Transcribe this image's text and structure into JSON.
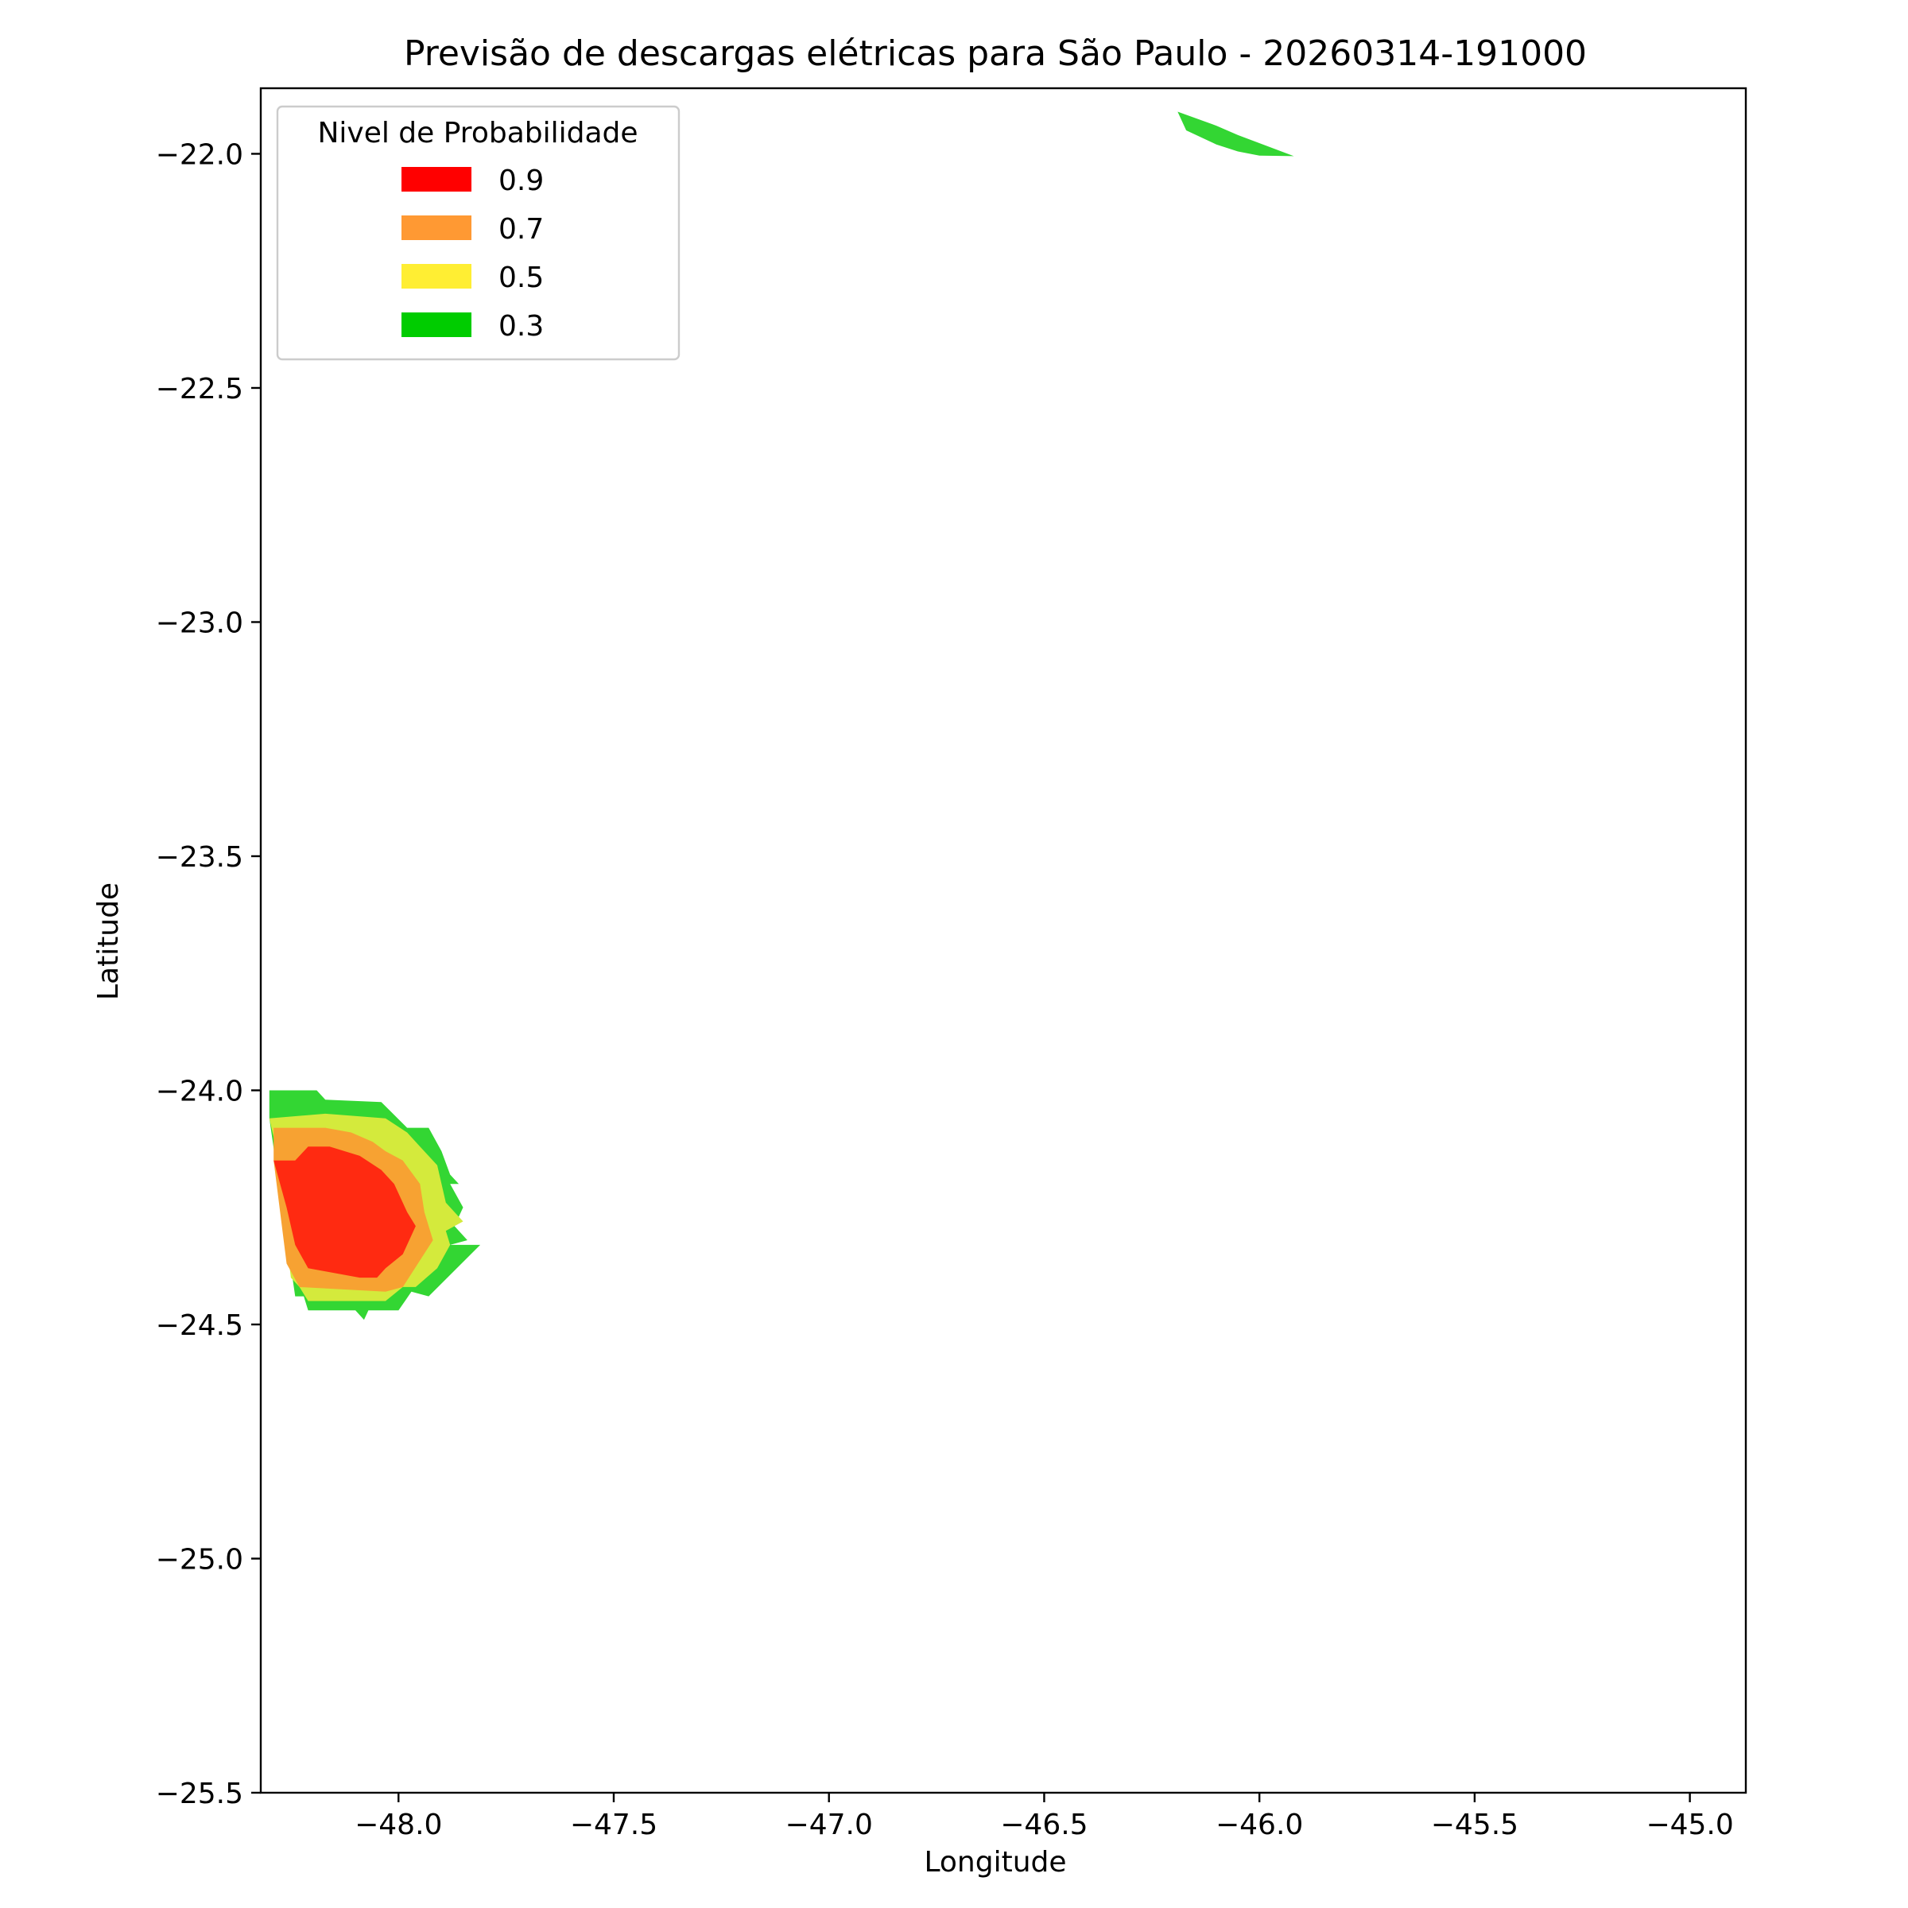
{
  "chart_data": {
    "type": "contour",
    "title": "Previsão de descargas elétricas para São Paulo - 20260314-191000",
    "xlabel": "Longitude",
    "ylabel": "Latitude",
    "xlim": [
      -48.32,
      -44.87
    ],
    "ylim": [
      -25.5,
      -21.86
    ],
    "xticks": [
      -48.0,
      -47.5,
      -47.0,
      -46.5,
      -46.0,
      -45.5,
      -45.0
    ],
    "xtick_labels": [
      "−48.0",
      "−47.5",
      "−47.0",
      "−46.5",
      "−46.0",
      "−45.5",
      "−45.0"
    ],
    "yticks": [
      -22.0,
      -22.5,
      -23.0,
      -23.5,
      -24.0,
      -24.5,
      -25.0,
      -25.5
    ],
    "ytick_labels": [
      "−22.0",
      "−22.5",
      "−23.0",
      "−23.5",
      "−24.0",
      "−24.5",
      "−25.0",
      "−25.5"
    ],
    "grid": false,
    "legend": {
      "title": "Nivel de Probabilidade",
      "placement": "top-left",
      "entries": [
        {
          "label": "0.9",
          "color": "#ff0000"
        },
        {
          "label": "0.7",
          "color": "#ff9933"
        },
        {
          "label": "0.5",
          "color": "#ffee33"
        },
        {
          "label": "0.3",
          "color": "#00cc00"
        }
      ]
    },
    "regions": [
      {
        "level": "0.3",
        "color": "#33d633",
        "polygon": [
          [
            -48.3,
            -24.0
          ],
          [
            -48.19,
            -24.0
          ],
          [
            -48.17,
            -24.02
          ],
          [
            -48.04,
            -24.025
          ],
          [
            -47.98,
            -24.08
          ],
          [
            -47.93,
            -24.08
          ],
          [
            -47.9,
            -24.13
          ],
          [
            -47.88,
            -24.18
          ],
          [
            -47.86,
            -24.2
          ],
          [
            -47.88,
            -24.2
          ],
          [
            -47.85,
            -24.25
          ],
          [
            -47.87,
            -24.29
          ],
          [
            -47.84,
            -24.32
          ],
          [
            -47.88,
            -24.33
          ],
          [
            -47.81,
            -24.33
          ],
          [
            -47.93,
            -24.44
          ],
          [
            -47.97,
            -24.43
          ],
          [
            -48.0,
            -24.47
          ],
          [
            -48.07,
            -24.47
          ],
          [
            -48.08,
            -24.49
          ],
          [
            -48.1,
            -24.47
          ],
          [
            -48.21,
            -24.47
          ],
          [
            -48.22,
            -24.44
          ],
          [
            -48.24,
            -24.44
          ],
          [
            -48.3,
            -24.06
          ]
        ]
      },
      {
        "level": "0.5",
        "color": "#d4ea3c",
        "polygon": [
          [
            -48.3,
            -24.06
          ],
          [
            -48.17,
            -24.05
          ],
          [
            -48.03,
            -24.06
          ],
          [
            -47.98,
            -24.09
          ],
          [
            -47.95,
            -24.12
          ],
          [
            -47.91,
            -24.16
          ],
          [
            -47.89,
            -24.24
          ],
          [
            -47.85,
            -24.28
          ],
          [
            -47.89,
            -24.3
          ],
          [
            -47.88,
            -24.33
          ],
          [
            -47.91,
            -24.38
          ],
          [
            -47.96,
            -24.42
          ],
          [
            -47.99,
            -24.42
          ],
          [
            -48.03,
            -24.45
          ],
          [
            -48.21,
            -24.45
          ],
          [
            -48.23,
            -24.42
          ],
          [
            -48.25,
            -24.4
          ],
          [
            -48.29,
            -24.1
          ]
        ]
      },
      {
        "level": "0.7",
        "color": "#f7a232",
        "polygon": [
          [
            -48.29,
            -24.08
          ],
          [
            -48.17,
            -24.08
          ],
          [
            -48.11,
            -24.09
          ],
          [
            -48.06,
            -24.11
          ],
          [
            -48.03,
            -24.13
          ],
          [
            -47.99,
            -24.15
          ],
          [
            -47.95,
            -24.2
          ],
          [
            -47.94,
            -24.26
          ],
          [
            -47.92,
            -24.32
          ],
          [
            -47.99,
            -24.42
          ],
          [
            -48.03,
            -24.43
          ],
          [
            -48.23,
            -24.42
          ],
          [
            -48.26,
            -24.37
          ],
          [
            -48.29,
            -24.15
          ]
        ]
      },
      {
        "level": "0.9",
        "color": "#ff2a11",
        "polygon": [
          [
            -48.29,
            -24.15
          ],
          [
            -48.24,
            -24.15
          ],
          [
            -48.21,
            -24.12
          ],
          [
            -48.16,
            -24.12
          ],
          [
            -48.09,
            -24.14
          ],
          [
            -48.04,
            -24.17
          ],
          [
            -48.01,
            -24.2
          ],
          [
            -47.98,
            -24.26
          ],
          [
            -47.96,
            -24.29
          ],
          [
            -47.99,
            -24.35
          ],
          [
            -48.03,
            -24.38
          ],
          [
            -48.05,
            -24.4
          ],
          [
            -48.09,
            -24.4
          ],
          [
            -48.21,
            -24.38
          ],
          [
            -48.24,
            -24.33
          ],
          [
            -48.26,
            -24.25
          ]
        ]
      },
      {
        "level": "0.3",
        "color": "#33d633",
        "polygon": [
          [
            -46.19,
            -21.91
          ],
          [
            -46.1,
            -21.94
          ],
          [
            -46.05,
            -21.96
          ],
          [
            -45.92,
            -22.005
          ],
          [
            -46.0,
            -22.004
          ],
          [
            -46.05,
            -21.995
          ],
          [
            -46.1,
            -21.98
          ],
          [
            -46.17,
            -21.95
          ]
        ]
      }
    ]
  }
}
